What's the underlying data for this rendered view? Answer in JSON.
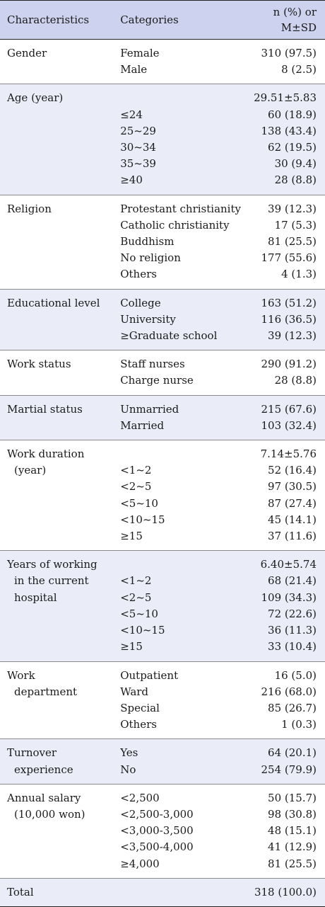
{
  "header": {
    "characteristics": "Characteristics",
    "categories": "Categories",
    "stat_line1": "n (%) or",
    "stat_line2": "M±SD"
  },
  "rows": [
    {
      "label": [
        "Gender"
      ],
      "categories": [
        "Female",
        "Male"
      ],
      "values": [
        "310 (97.5)",
        "8 (2.5)"
      ]
    },
    {
      "label": [
        "Age (year)"
      ],
      "categories": [
        "",
        "≤24",
        "25~29",
        "30~34",
        "35~39",
        "≥40"
      ],
      "values": [
        "29.51±5.83",
        "60 (18.9)",
        "138 (43.4)",
        "62 (19.5)",
        "30 (9.4)",
        "28 (8.8)"
      ]
    },
    {
      "label": [
        "Religion"
      ],
      "categories": [
        "Protestant christianity",
        "Catholic christianity",
        "Buddhism",
        "No religion",
        "Others"
      ],
      "values": [
        "39 (12.3)",
        "17 (5.3)",
        "81 (25.5)",
        "177 (55.6)",
        "4 (1.3)"
      ]
    },
    {
      "label": [
        "Educational level"
      ],
      "categories": [
        "College",
        "University",
        "≥Graduate school"
      ],
      "values": [
        "163 (51.2)",
        "116 (36.5)",
        "39 (12.3)"
      ]
    },
    {
      "label": [
        "Work status"
      ],
      "categories": [
        "Staff nurses",
        "Charge nurse"
      ],
      "values": [
        "290 (91.2)",
        "28 (8.8)"
      ]
    },
    {
      "label": [
        "Martial status"
      ],
      "categories": [
        "Unmarried",
        "Married"
      ],
      "values": [
        "215 (67.6)",
        "103 (32.4)"
      ]
    },
    {
      "label": [
        "Work duration",
        "(year)"
      ],
      "categories": [
        "",
        "<1~2",
        "<2~5",
        "<5~10",
        "<10~15",
        "≥15"
      ],
      "values": [
        "7.14±5.76",
        "52 (16.4)",
        "97 (30.5)",
        "87 (27.4)",
        "45 (14.1)",
        "37 (11.6)"
      ]
    },
    {
      "label": [
        "Years of working",
        "in the current",
        "hospital"
      ],
      "categories": [
        "",
        "<1~2",
        "<2~5",
        "<5~10",
        "<10~15",
        "≥15"
      ],
      "values": [
        "6.40±5.74",
        "68 (21.4)",
        "109 (34.3)",
        "72 (22.6)",
        "36 (11.3)",
        "33 (10.4)"
      ]
    },
    {
      "label": [
        "Work",
        "department"
      ],
      "categories": [
        "Outpatient",
        "Ward",
        "Special",
        "Others"
      ],
      "values": [
        "16 (5.0)",
        "216 (68.0)",
        "85 (26.7)",
        "1 (0.3)"
      ]
    },
    {
      "label": [
        "Turnover",
        "experience"
      ],
      "categories": [
        "Yes",
        "No"
      ],
      "values": [
        "64 (20.1)",
        "254 (79.9)"
      ]
    },
    {
      "label": [
        "Annual salary",
        "(10,000 won)"
      ],
      "categories": [
        "<2,500",
        "<2,500-3,000",
        "<3,000-3,500",
        "<3,500-4,000",
        "≥4,000"
      ],
      "values": [
        "50 (15.7)",
        "98 (30.8)",
        "48 (15.1)",
        "41 (12.9)",
        "81 (25.5)"
      ]
    },
    {
      "label": [
        "Total"
      ],
      "categories": [
        ""
      ],
      "values": [
        "318 (100.0)"
      ]
    }
  ]
}
